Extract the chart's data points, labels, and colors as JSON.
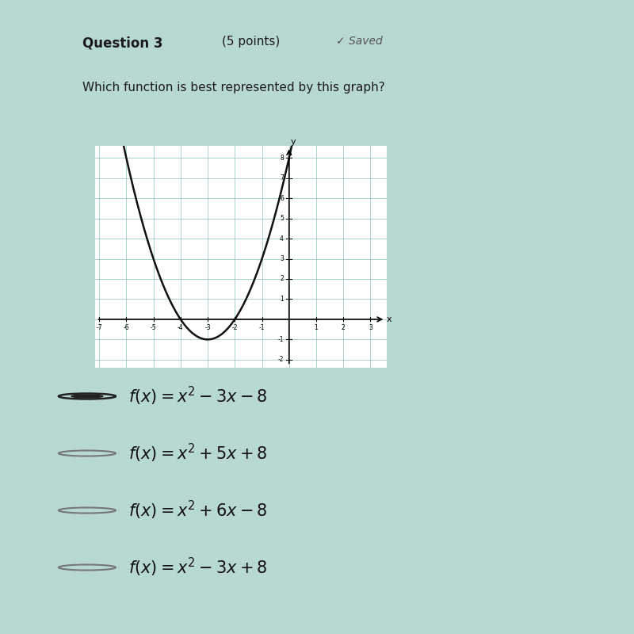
{
  "background_color": "#b8d8d4",
  "graph_bg": "#ffffff",
  "grid_color": "#88c4be",
  "curve_color": "#111111",
  "x_min": -7,
  "x_max": 3,
  "y_min": -2,
  "y_max": 8,
  "x_ticks": [
    -7,
    -6,
    -5,
    -4,
    -3,
    -2,
    -1,
    1,
    2,
    3
  ],
  "y_ticks": [
    -2,
    -1,
    1,
    2,
    3,
    4,
    5,
    6,
    7,
    8
  ],
  "curve_coeffs": [
    1,
    6,
    8
  ],
  "options": [
    {
      "latex": "$f(x) = x^2 - 3x - 8$",
      "selected": true
    },
    {
      "latex": "$f(x) = x^2 + 5x + 8$",
      "selected": false
    },
    {
      "latex": "$f(x) = x^2 + 6x - 8$",
      "selected": false
    },
    {
      "latex": "$f(x) = x^2 - 3x + 8$",
      "selected": false
    }
  ]
}
